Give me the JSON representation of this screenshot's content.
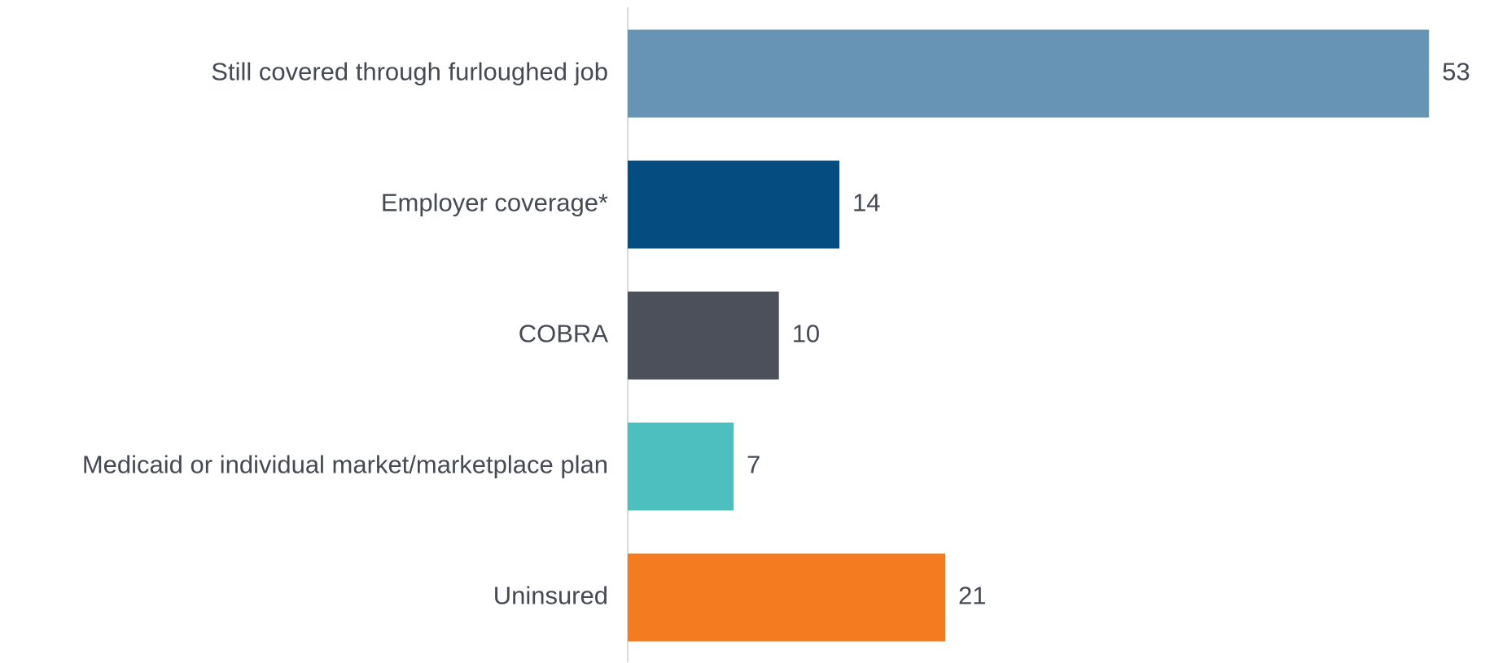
{
  "chart_data": {
    "type": "bar",
    "orientation": "horizontal",
    "categories": [
      "Still covered through furloughed job",
      "Employer coverage*",
      "COBRA",
      "Medicaid or individual market/marketplace plan",
      "Uninsured"
    ],
    "values": [
      53,
      14,
      10,
      7,
      21
    ],
    "colors": [
      "#6793b4",
      "#054d80",
      "#4b505a",
      "#4dbfbf",
      "#f47b20"
    ]
  }
}
